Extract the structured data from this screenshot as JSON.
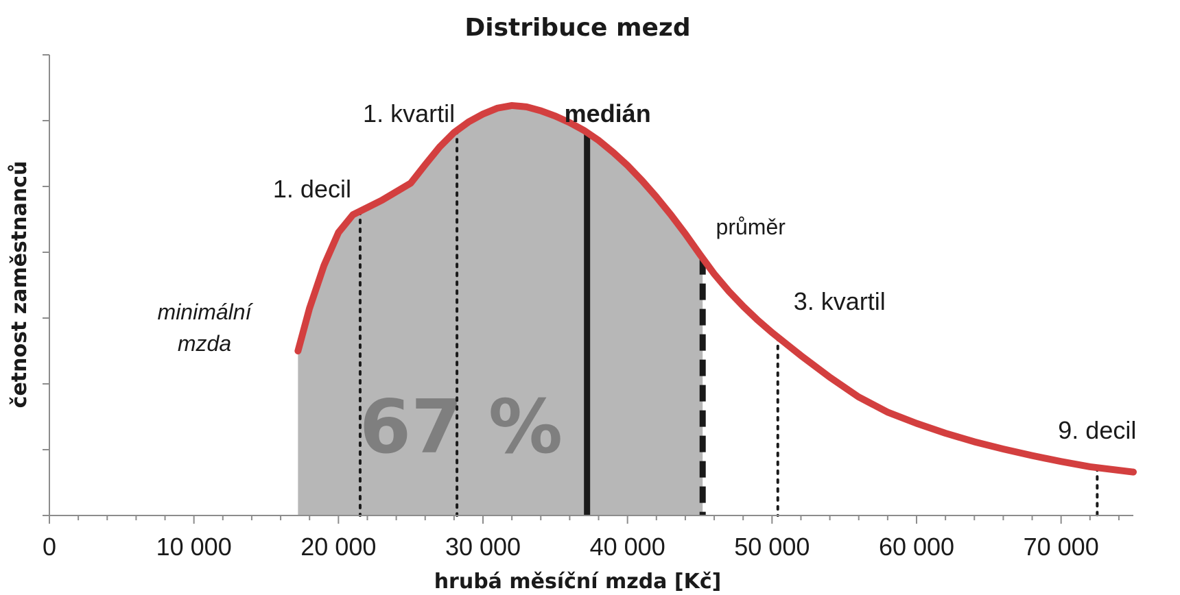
{
  "chart_data": {
    "type": "area",
    "title": "Distribuce mezd",
    "xlabel": "hrubá měsíční mzda [Kč]",
    "ylabel": "četnost zaměstnanců",
    "xlim": [
      0,
      75000
    ],
    "ylim": [
      0,
      7
    ],
    "x_ticks": [
      0,
      10000,
      20000,
      30000,
      40000,
      50000,
      60000,
      70000
    ],
    "x_tick_labels": [
      "0",
      "10 000",
      "20 000",
      "30 000",
      "40 000",
      "50 000",
      "60 000",
      "70 000"
    ],
    "y_ticks": [
      0,
      1,
      2,
      3,
      4,
      5,
      6,
      7
    ],
    "series": [
      {
        "color": "#d33f3f",
        "x": [
          17200,
          18000,
          19000,
          20000,
          21000,
          22000,
          23000,
          24000,
          25000,
          26000,
          27000,
          28000,
          29000,
          30000,
          31000,
          32000,
          33000,
          34000,
          35000,
          36000,
          37000,
          38000,
          39000,
          40000,
          41000,
          42000,
          43000,
          44000,
          45000,
          46000,
          47000,
          48000,
          49000,
          50000,
          52000,
          54000,
          56000,
          58000,
          60000,
          62000,
          64000,
          66000,
          68000,
          70000,
          72000,
          75000
        ],
        "y": [
          2.5,
          3.15,
          3.8,
          4.3,
          4.57,
          4.68,
          4.79,
          4.92,
          5.05,
          5.33,
          5.6,
          5.82,
          5.98,
          6.1,
          6.19,
          6.23,
          6.21,
          6.15,
          6.07,
          5.97,
          5.85,
          5.7,
          5.52,
          5.32,
          5.09,
          4.84,
          4.57,
          4.28,
          3.97,
          3.67,
          3.41,
          3.18,
          2.97,
          2.78,
          2.43,
          2.1,
          1.8,
          1.57,
          1.4,
          1.25,
          1.12,
          1.01,
          0.91,
          0.82,
          0.74,
          0.66
        ]
      }
    ],
    "shaded_range": [
      17200,
      45200
    ],
    "shaded_color": "#b7b7b7",
    "shaded_label": "67 %",
    "markers": [
      {
        "label": "1. decil",
        "x": 21500,
        "style": "dotted"
      },
      {
        "label": "1. kvartil",
        "x": 28200,
        "style": "dotted"
      },
      {
        "label": "medián",
        "x": 37200,
        "style": "solid"
      },
      {
        "label": "průměr",
        "x": 45200,
        "style": "dashed"
      },
      {
        "label": "3. kvartil",
        "x": 50400,
        "style": "dotted"
      },
      {
        "label": "9. decil",
        "x": 72500,
        "style": "dotted"
      }
    ],
    "annotation": {
      "line1": "minimální",
      "line2": "mzda",
      "x": 17200
    },
    "grid": false
  }
}
